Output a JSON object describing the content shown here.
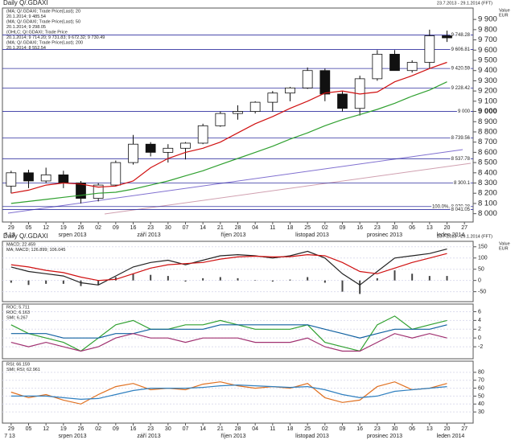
{
  "chart_data": [
    {
      "type": "candlestick",
      "title": "Daily Q/.GDAXI",
      "date_range": "23.7.2013 - 29.1.2014 (FFT)",
      "axis_unit": "Value",
      "currency": "EUR",
      "legend": [
        {
          "label": "(MA; Q/.GDAXI; Trade Price(Last); 20",
          "color": "#d01010"
        },
        {
          "label": "20.1.2014; 9 485.54",
          "color": "#d01010"
        },
        {
          "label": "(MA; Q/.GDAXI; Trade Price(Last); 50",
          "color": "#30a030"
        },
        {
          "label": "20.1.2014; 9 298.05",
          "color": "#30a030"
        },
        {
          "label": "(OHLC; Q/.GDAXI; Trade Price",
          "color": "#222222"
        },
        {
          "label": "20.1.2014; 9 714.20; 9 731.83; 9 672.32; 9 730.49",
          "color": "#222222"
        },
        {
          "label": "(MA; Q/.GDAXI; Trade Price(Last); 200",
          "color": "#c07090"
        },
        {
          "label": "20.1.2014; 8 552.54",
          "color": "#c07090"
        }
      ],
      "x": [
        "29",
        "05",
        "12",
        "19",
        "26",
        "02",
        "09",
        "16",
        "23",
        "30",
        "07",
        "14",
        "21",
        "28",
        "04",
        "11",
        "18",
        "25",
        "02",
        "09",
        "16",
        "23",
        "30",
        "06",
        "13",
        "20",
        "27"
      ],
      "months": [
        "7 13",
        "srpen 2013",
        "září 2013",
        "říjen 2013",
        "listopad 2013",
        "prosinec 2013",
        "leden 2014"
      ],
      "open": [
        8270,
        8400,
        8320,
        8380,
        8300,
        8150,
        8280,
        8500,
        8680,
        8600,
        8640,
        8690,
        8860,
        8980,
        9000,
        9090,
        9180,
        9230,
        9400,
        9170,
        9030,
        9320,
        9560,
        9400,
        9480,
        9740,
        null
      ],
      "high": [
        8420,
        8430,
        8450,
        8420,
        8320,
        8300,
        8520,
        8770,
        8700,
        8680,
        8700,
        8880,
        9000,
        9060,
        9100,
        9200,
        9240,
        9430,
        9420,
        9200,
        9350,
        9600,
        9600,
        9500,
        9800,
        9790,
        null
      ],
      "low": [
        8200,
        8250,
        8300,
        8250,
        8100,
        8120,
        8270,
        8480,
        8560,
        8500,
        8530,
        8680,
        8850,
        8920,
        8980,
        9000,
        9100,
        9220,
        9100,
        9000,
        8960,
        9300,
        9400,
        9380,
        9420,
        9680,
        null
      ],
      "close": [
        8400,
        8320,
        8380,
        8300,
        8150,
        8280,
        8500,
        8680,
        8600,
        8640,
        8690,
        8860,
        8980,
        9000,
        9090,
        9180,
        9230,
        9400,
        9170,
        9030,
        9320,
        9560,
        9400,
        9480,
        9740,
        9720,
        null
      ],
      "series": [
        {
          "name": "MA 20",
          "color": "#d01010",
          "values": [
            8200,
            8230,
            8280,
            8300,
            8290,
            8260,
            8270,
            8320,
            8450,
            8540,
            8600,
            8640,
            8700,
            8790,
            8880,
            8950,
            9030,
            9100,
            9180,
            9200,
            9170,
            9190,
            9290,
            9350,
            9420,
            9480,
            null
          ]
        },
        {
          "name": "MA 50",
          "color": "#30a030",
          "values": [
            8100,
            8120,
            8140,
            8160,
            8180,
            8200,
            8210,
            8240,
            8280,
            8320,
            8370,
            8420,
            8480,
            8540,
            8600,
            8660,
            8730,
            8790,
            8860,
            8920,
            8970,
            9020,
            9080,
            9150,
            9210,
            9290,
            null
          ]
        }
      ],
      "levels": [
        {
          "value": 9748.28,
          "label": "9 748.28"
        },
        {
          "value": 9606.81,
          "label": "9 606.81"
        },
        {
          "value": 9420.59,
          "label": "9 420.59"
        },
        {
          "value": 9228.42,
          "label": "9 228.42"
        },
        {
          "value": 9000,
          "label": "9 000"
        },
        {
          "value": 8739.56,
          "label": "8 739.56"
        },
        {
          "value": 8537.78,
          "label": "8 537.78"
        },
        {
          "value": 8300.1,
          "label": "8 300.1"
        },
        {
          "value": 8070.28,
          "label": "100.0%, 8 070.28"
        },
        {
          "value": 8041.05,
          "label": "8 041.05"
        }
      ],
      "ylim": [
        7950,
        9980
      ],
      "yticks": [
        {
          "value": 8000,
          "label": "8 000"
        },
        {
          "value": 8100,
          "label": "8 100"
        },
        {
          "value": 8200,
          "label": "8 200"
        },
        {
          "value": 8300,
          "label": "8 300"
        },
        {
          "value": 8400,
          "label": "8 400"
        },
        {
          "value": 8500,
          "label": "8 500"
        },
        {
          "value": 8600,
          "label": "8 600"
        },
        {
          "value": 8700,
          "label": "8 700"
        },
        {
          "value": 8800,
          "label": "8 800"
        },
        {
          "value": 8900,
          "label": "8 900"
        },
        {
          "value": 9000,
          "label": "9 000"
        },
        {
          "value": 9100,
          "label": "9 100"
        },
        {
          "value": 9200,
          "label": "9 200"
        },
        {
          "value": 9300,
          "label": "9 300"
        },
        {
          "value": 9400,
          "label": "9 400"
        },
        {
          "value": 9500,
          "label": "9 500"
        },
        {
          "value": 9600,
          "label": "9 600"
        },
        {
          "value": 9700,
          "label": "9 700"
        },
        {
          "value": 9800,
          "label": "9 800"
        },
        {
          "value": 9900,
          "label": "9 900"
        }
      ]
    },
    {
      "type": "indicator",
      "title": "Daily Q/.GDAXI",
      "date_range": "23.7.2013 - 29.1.2014 (FFT)",
      "axis_unit": "Value",
      "currency": "EUR",
      "legend": [
        {
          "label": "MACD; 22.459",
          "color": "#222222"
        },
        {
          "label": "MA; MACD; 126.899; 106.045",
          "color": "#d01010"
        }
      ],
      "series": [
        {
          "name": "Histogram",
          "color": "#444444",
          "kind": "bar",
          "values": [
            -10,
            -20,
            -15,
            -15,
            -25,
            -20,
            15,
            30,
            25,
            20,
            -5,
            10,
            15,
            10,
            2,
            -5,
            4,
            15,
            -10,
            -50,
            -60,
            10,
            45,
            30,
            20,
            20
          ]
        },
        {
          "name": "MACD",
          "color": "#222222",
          "kind": "line",
          "values": [
            60,
            40,
            30,
            20,
            -10,
            -20,
            20,
            60,
            80,
            90,
            70,
            90,
            110,
            115,
            110,
            100,
            110,
            130,
            100,
            30,
            -20,
            40,
            100,
            110,
            120,
            140
          ]
        },
        {
          "name": "Signal",
          "color": "#d01010",
          "kind": "line",
          "values": [
            70,
            60,
            45,
            35,
            15,
            0,
            5,
            30,
            55,
            70,
            75,
            80,
            95,
            105,
            108,
            105,
            106,
            115,
            110,
            80,
            40,
            30,
            55,
            80,
            100,
            120
          ]
        }
      ],
      "ylim": [
        -80,
        160
      ],
      "yticks": [
        -50,
        0,
        50,
        100,
        150
      ]
    },
    {
      "type": "indicator",
      "legend": [
        {
          "label": "ROC; 5.711",
          "color": "#30a030"
        },
        {
          "label": "ROC; 6.163",
          "color": "#1060a0"
        },
        {
          "label": "SMI; 6.267",
          "color": "#a03070"
        }
      ],
      "series": [
        {
          "name": "ROC 1",
          "color": "#30a030",
          "kind": "line",
          "values": [
            3,
            1,
            0,
            -1,
            -3,
            0,
            3,
            4,
            2,
            2,
            3,
            3,
            4,
            3,
            2,
            2,
            2,
            3,
            -1,
            -2,
            -3,
            3,
            5,
            2,
            3,
            4
          ]
        },
        {
          "name": "ROC 2",
          "color": "#1060a0",
          "kind": "line",
          "values": [
            1,
            1,
            1,
            0,
            0,
            0,
            1,
            1,
            2,
            2,
            2,
            2,
            3,
            3,
            3,
            3,
            3,
            3,
            2,
            1,
            0,
            1,
            2,
            2,
            2,
            3
          ]
        },
        {
          "name": "SMI",
          "color": "#a03070",
          "kind": "line",
          "values": [
            -1,
            -2,
            -1,
            -2,
            -3,
            -2,
            0,
            1,
            0,
            0,
            -1,
            0,
            0,
            0,
            -1,
            -1,
            -1,
            0,
            -2,
            -3,
            -3,
            -1,
            1,
            0,
            1,
            0
          ]
        }
      ],
      "ylim": [
        -4,
        7
      ],
      "yticks": [
        -2,
        0,
        2,
        4,
        6
      ]
    },
    {
      "type": "indicator",
      "legend": [
        {
          "label": "RSI; 66.159",
          "color": "#e07020"
        },
        {
          "label": "SMI; RSI; 62.961",
          "color": "#3080c0"
        }
      ],
      "series": [
        {
          "name": "RSI",
          "color": "#e07020",
          "kind": "line",
          "values": [
            55,
            48,
            52,
            45,
            40,
            52,
            62,
            66,
            58,
            60,
            58,
            65,
            68,
            63,
            60,
            62,
            60,
            66,
            48,
            42,
            45,
            62,
            68,
            58,
            60,
            66,
            null
          ]
        },
        {
          "name": "SMI RSI",
          "color": "#3080c0",
          "kind": "line",
          "values": [
            50,
            50,
            50,
            48,
            46,
            47,
            52,
            57,
            60,
            60,
            60,
            61,
            63,
            64,
            63,
            62,
            61,
            62,
            58,
            52,
            48,
            50,
            56,
            58,
            60,
            62,
            null
          ]
        }
      ],
      "x": [
        "29",
        "05",
        "12",
        "19",
        "26",
        "02",
        "09",
        "16",
        "23",
        "30",
        "07",
        "14",
        "21",
        "28",
        "04",
        "11",
        "18",
        "25",
        "02",
        "09",
        "16",
        "23",
        "30",
        "06",
        "13",
        "20",
        "27"
      ],
      "months": [
        "7 13",
        "srpen 2013",
        "září 2013",
        "říjen 2013",
        "listopad 2013",
        "prosinec 2013",
        "leden 2014"
      ],
      "ylim": [
        20,
        90
      ],
      "yticks": [
        30,
        40,
        50,
        60,
        70,
        80
      ]
    }
  ]
}
